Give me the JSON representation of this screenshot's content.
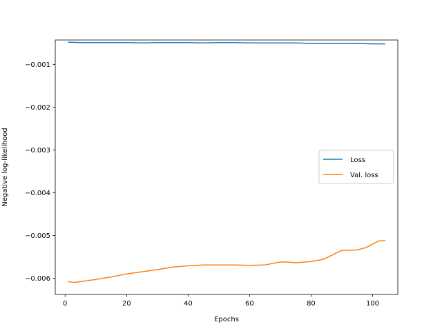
{
  "chart_data": {
    "type": "line",
    "title": "",
    "xlabel": "Epochs",
    "ylabel": "Negative log-likelihood",
    "xlim": [
      -3.2,
      108.2
    ],
    "ylim": [
      -0.00638,
      -0.00043
    ],
    "xticks": [
      0,
      20,
      40,
      60,
      80,
      100
    ],
    "xtick_labels": [
      "0",
      "20",
      "40",
      "60",
      "80",
      "100"
    ],
    "yticks": [
      -0.001,
      -0.002,
      -0.003,
      -0.004,
      -0.005,
      -0.006
    ],
    "ytick_labels": [
      "−0.001",
      "−0.002",
      "−0.003",
      "−0.004",
      "−0.005",
      "−0.006"
    ],
    "grid": false,
    "legend_position": "center-right",
    "series": [
      {
        "name": "Loss",
        "color": "#1f77b4",
        "x": [
          1,
          5,
          10,
          15,
          20,
          25,
          30,
          35,
          40,
          45,
          50,
          55,
          60,
          65,
          70,
          75,
          80,
          85,
          90,
          95,
          100,
          104
        ],
        "y": [
          -0.00048,
          -0.00049,
          -0.00049,
          -0.00049,
          -0.00049,
          -0.0005,
          -0.00049,
          -0.00049,
          -0.00049,
          -0.0005,
          -0.00049,
          -0.00049,
          -0.0005,
          -0.0005,
          -0.0005,
          -0.0005,
          -0.00051,
          -0.00051,
          -0.00051,
          -0.00051,
          -0.00052,
          -0.00052
        ]
      },
      {
        "name": "Val. loss",
        "color": "#ff7f0e",
        "x": [
          1,
          3,
          5,
          10,
          15,
          20,
          25,
          30,
          35,
          40,
          45,
          50,
          55,
          60,
          65,
          70,
          72,
          75,
          80,
          84,
          86,
          89,
          90,
          95,
          98,
          100,
          102,
          104
        ],
        "y": [
          -0.00608,
          -0.0061,
          -0.00608,
          -0.00603,
          -0.00597,
          -0.0059,
          -0.00585,
          -0.0058,
          -0.00574,
          -0.00571,
          -0.00569,
          -0.00569,
          -0.00569,
          -0.0057,
          -0.00569,
          -0.00562,
          -0.00562,
          -0.00564,
          -0.00561,
          -0.00556,
          -0.00549,
          -0.00538,
          -0.00535,
          -0.00534,
          -0.00528,
          -0.0052,
          -0.00513,
          -0.00512
        ]
      }
    ]
  }
}
